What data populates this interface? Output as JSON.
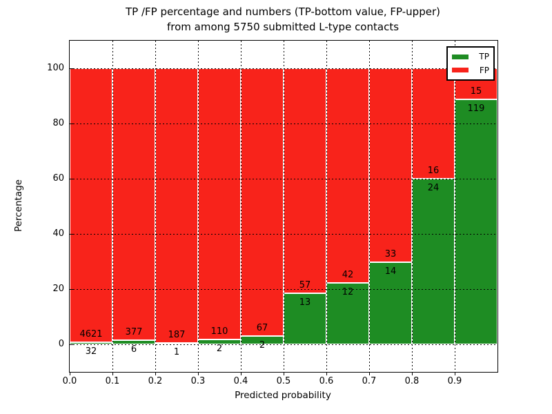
{
  "title": {
    "line1": "TP /FP percentage and numbers (TP-bottom value, FP-upper)",
    "line2": "from among 5750 submitted L-type contacts"
  },
  "y_axis": {
    "label": "Percentage",
    "tick_labels": [
      "0",
      "20",
      "40",
      "60",
      "80",
      "100"
    ],
    "tick_values": [
      0,
      20,
      40,
      60,
      80,
      100
    ],
    "range": [
      -10,
      110
    ]
  },
  "x_axis": {
    "label": "Predicted probability",
    "tick_labels": [
      "0.0",
      "0.1",
      "0.2",
      "0.3",
      "0.4",
      "0.5",
      "0.6",
      "0.7",
      "0.8",
      "0.9"
    ],
    "tick_values": [
      0.0,
      0.1,
      0.2,
      0.3,
      0.4,
      0.5,
      0.6,
      0.7,
      0.8,
      0.9
    ],
    "range": [
      0,
      1
    ]
  },
  "legend": {
    "items": [
      {
        "label": "TP",
        "color": "#1e8c23"
      },
      {
        "label": "FP",
        "color": "#f8231b"
      }
    ]
  },
  "colors": {
    "tp_bar": "#1e8c23",
    "fp_bar": "#f8231b",
    "bar_edge": "#ffffff",
    "grid": "#000000",
    "text": "#000000",
    "background": "#ffffff"
  },
  "chart_data": {
    "type": "bar",
    "stacked": true,
    "normalized_to_percent": true,
    "title": "TP /FP percentage and numbers (TP-bottom value, FP-upper) from among 5750 submitted L-type contacts",
    "xlabel": "Predicted probability",
    "ylabel": "Percentage",
    "xlim": [
      0.0,
      1.0
    ],
    "ylim": [
      -10,
      110
    ],
    "grid": "dotted both axes",
    "legend_position": "upper right",
    "bin_edges": [
      0.0,
      0.1,
      0.2,
      0.3,
      0.4,
      0.5,
      0.6,
      0.7,
      0.8,
      0.9,
      1.0
    ],
    "categories": [
      "0.0-0.1",
      "0.1-0.2",
      "0.2-0.3",
      "0.3-0.4",
      "0.4-0.5",
      "0.5-0.6",
      "0.6-0.7",
      "0.7-0.8",
      "0.8-0.9",
      "0.9-1.0"
    ],
    "series": [
      {
        "name": "TP",
        "counts": [
          32,
          6,
          1,
          2,
          2,
          13,
          12,
          14,
          24,
          119
        ],
        "percent": [
          0.69,
          1.57,
          0.53,
          1.79,
          2.9,
          18.57,
          22.22,
          29.79,
          60.0,
          88.81
        ]
      },
      {
        "name": "FP",
        "counts": [
          4621,
          377,
          187,
          110,
          67,
          57,
          42,
          33,
          16,
          15
        ],
        "percent": [
          99.31,
          98.43,
          99.47,
          98.21,
          97.1,
          81.43,
          77.78,
          70.21,
          40.0,
          11.19
        ]
      }
    ],
    "total_contacts": 5750,
    "annotation_rule": "FP count printed above TP/FP boundary, TP count printed below it"
  }
}
